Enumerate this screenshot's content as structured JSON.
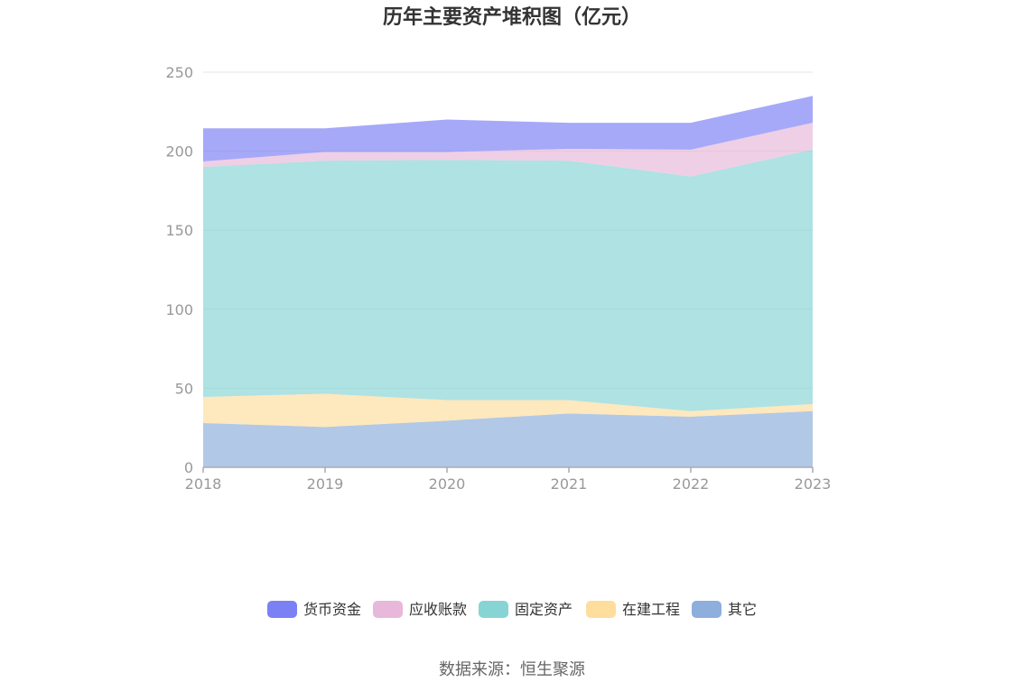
{
  "chart_data": {
    "type": "area",
    "stacked": true,
    "title": "历年主要资产堆积图（亿元）",
    "xlabel": "",
    "ylabel": "",
    "categories": [
      "2018",
      "2019",
      "2020",
      "2021",
      "2022",
      "2023"
    ],
    "ylim": [
      0,
      250
    ],
    "yticks": [
      0,
      50,
      100,
      150,
      200,
      250
    ],
    "grid": true,
    "legend_position": "bottom",
    "series": [
      {
        "name": "其它",
        "color": "#8eaedc",
        "values": [
          28,
          25.5,
          29.5,
          34,
          32,
          35.5
        ]
      },
      {
        "name": "在建工程",
        "color": "#fedd9d",
        "values": [
          16.5,
          21,
          13,
          8.5,
          3.5,
          4.5
        ]
      },
      {
        "name": "固定资产",
        "color": "#87d4d5",
        "values": [
          145.5,
          147.5,
          152,
          151.5,
          148.5,
          161
        ]
      },
      {
        "name": "应收账款",
        "color": "#e8b8da",
        "values": [
          3.5,
          5.5,
          5,
          7.5,
          17,
          17
        ]
      },
      {
        "name": "货币资金",
        "color": "#7c80f5",
        "values": [
          21,
          15,
          20.5,
          16.5,
          17,
          17
        ]
      }
    ],
    "legend_order": [
      "货币资金",
      "应收账款",
      "固定资产",
      "在建工程",
      "其它"
    ],
    "source": "数据来源：恒生聚源"
  }
}
